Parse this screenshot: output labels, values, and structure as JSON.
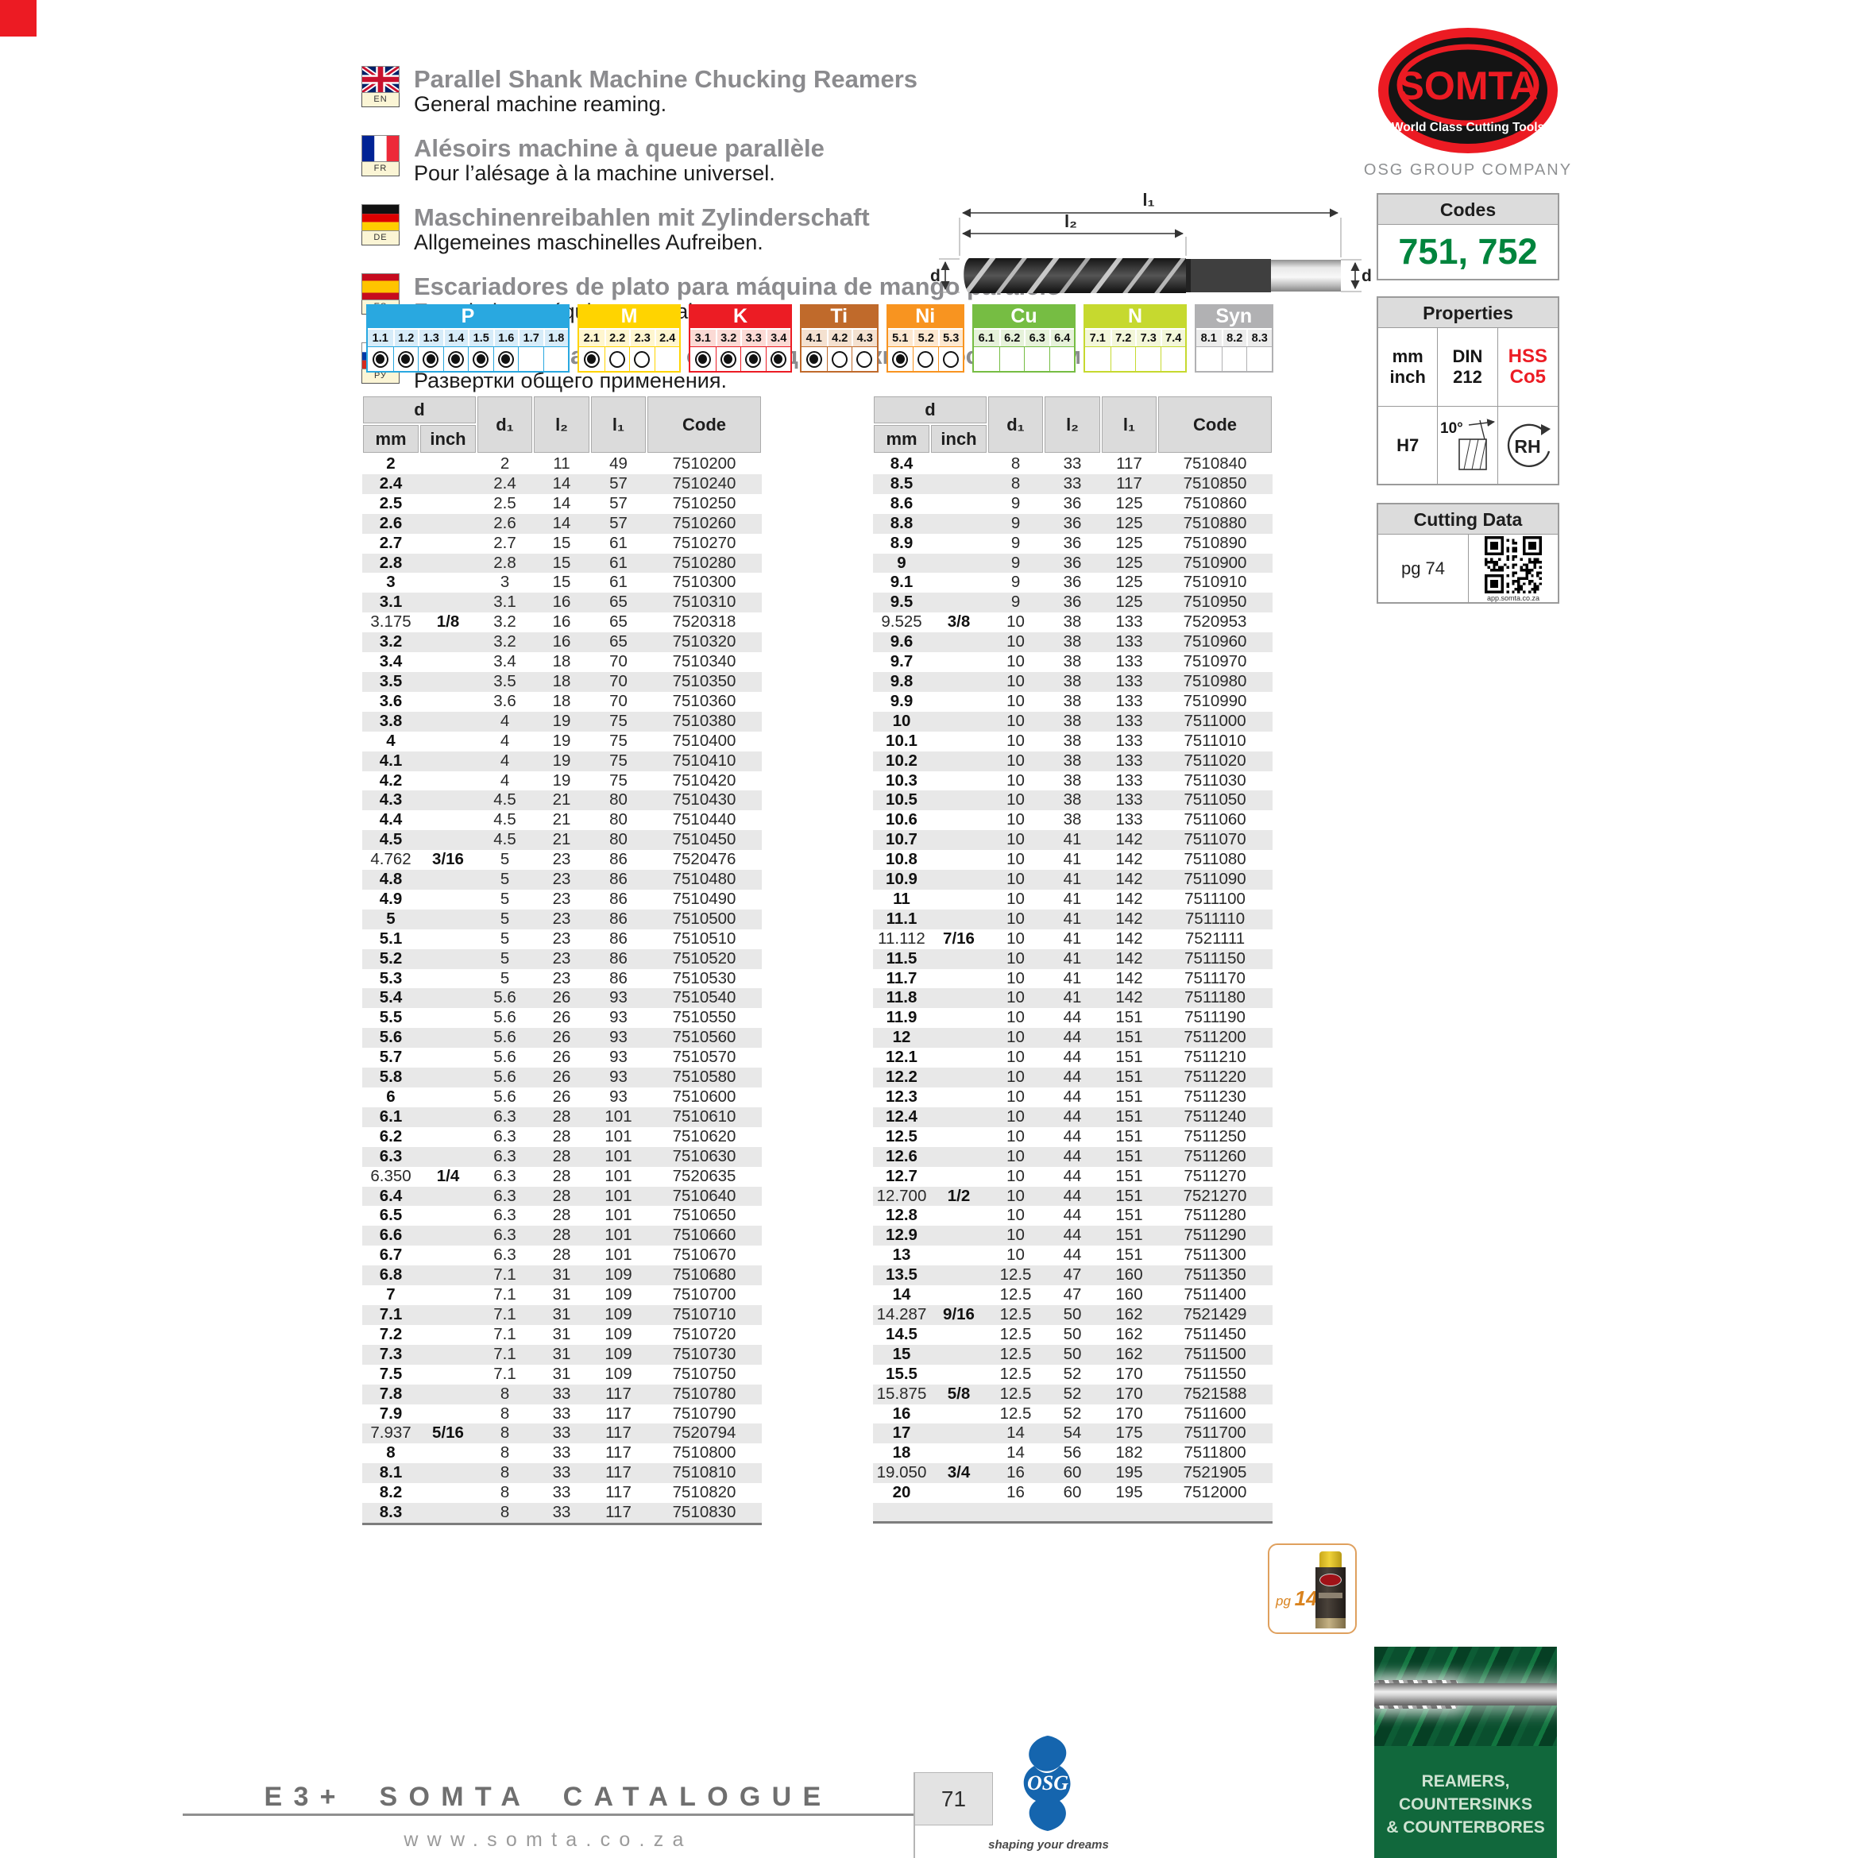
{
  "languages": [
    {
      "code": "EN",
      "flag": "uk",
      "title": "Parallel Shank Machine Chucking Reamers",
      "subtitle": "General machine reaming."
    },
    {
      "code": "FR",
      "flag": "fr",
      "title": "Alésoirs machine à queue parallèle",
      "subtitle": "Pour l’alésage à la machine universel."
    },
    {
      "code": "DE",
      "flag": "de",
      "title": "Maschinenreibahlen mit Zylinderschaft",
      "subtitle": "Allgemeines maschinelles Aufreiben."
    },
    {
      "code": "ES",
      "flag": "es",
      "title": "Escariadores de plato para máquina de mango paralelo",
      "subtitle": "Escariado a máquina general."
    },
    {
      "code": "РУ",
      "flag": "ru",
      "title": "Машинные развертки с цилиндрическим хвостовиком",
      "subtitle": "Развертки общего применения."
    }
  ],
  "logo": {
    "brand": "SOMTA",
    "tagline": "World Class Cutting Tools",
    "company": "OSG GROUP COMPANY"
  },
  "codes": {
    "title": "Codes",
    "value": "751, 752",
    "value_color": "#00843d"
  },
  "properties": {
    "title": "Properties",
    "units_line1": "mm",
    "units_line2": "inch",
    "din_line1": "DIN",
    "din_line2": "212",
    "hss_line1": "HSS",
    "hss_line2": "Co5",
    "hss_color": "#ec1c24",
    "tolerance": "H7",
    "rake_angle": "10°",
    "rotation": "RH"
  },
  "cutting_data": {
    "title": "Cutting Data",
    "page_ref": "pg 74",
    "qr_caption": "app.somta.co.za"
  },
  "drawing": {
    "label_l1": "l₁",
    "label_l2": "l₂",
    "label_d": "d",
    "label_d1": "d₁"
  },
  "material_chart": {
    "groups": [
      {
        "label": "P",
        "color": "#29a8e0",
        "light": "#d7ecf9",
        "cols": [
          {
            "n": "1.1",
            "state": "filled"
          },
          {
            "n": "1.2",
            "state": "filled"
          },
          {
            "n": "1.3",
            "state": "filled"
          },
          {
            "n": "1.4",
            "state": "filled"
          },
          {
            "n": "1.5",
            "state": "filled"
          },
          {
            "n": "1.6",
            "state": "filled"
          },
          {
            "n": "1.7",
            "state": "none"
          },
          {
            "n": "1.8",
            "state": "none"
          }
        ]
      },
      {
        "label": "M",
        "color": "#ffd400",
        "light": "#fff6cf",
        "cols": [
          {
            "n": "2.1",
            "state": "filled"
          },
          {
            "n": "2.2",
            "state": "empty"
          },
          {
            "n": "2.3",
            "state": "empty"
          },
          {
            "n": "2.4",
            "state": "none"
          }
        ]
      },
      {
        "label": "K",
        "color": "#ec1c24",
        "light": "#fbdad5",
        "cols": [
          {
            "n": "3.1",
            "state": "filled"
          },
          {
            "n": "3.2",
            "state": "filled"
          },
          {
            "n": "3.3",
            "state": "filled"
          },
          {
            "n": "3.4",
            "state": "filled"
          }
        ]
      },
      {
        "label": "Ti",
        "color": "#c06a2b",
        "light": "#f4e1d0",
        "cols": [
          {
            "n": "4.1",
            "state": "filled"
          },
          {
            "n": "4.2",
            "state": "empty"
          },
          {
            "n": "4.3",
            "state": "empty"
          }
        ]
      },
      {
        "label": "Ni",
        "color": "#f89420",
        "light": "#fde8d0",
        "cols": [
          {
            "n": "5.1",
            "state": "filled"
          },
          {
            "n": "5.2",
            "state": "empty"
          },
          {
            "n": "5.3",
            "state": "empty"
          }
        ]
      },
      {
        "label": "Cu",
        "color": "#76bd43",
        "light": "#e6f2da",
        "cols": [
          {
            "n": "6.1",
            "state": "none"
          },
          {
            "n": "6.2",
            "state": "none"
          },
          {
            "n": "6.3",
            "state": "none"
          },
          {
            "n": "6.4",
            "state": "none"
          }
        ]
      },
      {
        "label": "N",
        "color": "#c6d92f",
        "light": "#f3f7d9",
        "cols": [
          {
            "n": "7.1",
            "state": "none"
          },
          {
            "n": "7.2",
            "state": "none"
          },
          {
            "n": "7.3",
            "state": "none"
          },
          {
            "n": "7.4",
            "state": "none"
          }
        ]
      },
      {
        "label": "Syn",
        "color": "#b1b1b3",
        "light": "#ececec",
        "cols": [
          {
            "n": "8.1",
            "state": "none"
          },
          {
            "n": "8.2",
            "state": "none"
          },
          {
            "n": "8.3",
            "state": "none"
          }
        ]
      }
    ]
  },
  "tables": {
    "headers": {
      "d": "d",
      "mm": "mm",
      "inch": "inch",
      "d1": "d₁",
      "l2": "l₂",
      "l1": "l₁",
      "code": "Code"
    },
    "left_rows": [
      [
        "2",
        "",
        "2",
        "11",
        "49",
        "7510200"
      ],
      [
        "2.4",
        "",
        "2.4",
        "14",
        "57",
        "7510240"
      ],
      [
        "2.5",
        "",
        "2.5",
        "14",
        "57",
        "7510250"
      ],
      [
        "2.6",
        "",
        "2.6",
        "14",
        "57",
        "7510260"
      ],
      [
        "2.7",
        "",
        "2.7",
        "15",
        "61",
        "7510270"
      ],
      [
        "2.8",
        "",
        "2.8",
        "15",
        "61",
        "7510280"
      ],
      [
        "3",
        "",
        "3",
        "15",
        "61",
        "7510300"
      ],
      [
        "3.1",
        "",
        "3.1",
        "16",
        "65",
        "7510310"
      ],
      [
        "3.175",
        "1/8",
        "3.2",
        "16",
        "65",
        "7520318"
      ],
      [
        "3.2",
        "",
        "3.2",
        "16",
        "65",
        "7510320"
      ],
      [
        "3.4",
        "",
        "3.4",
        "18",
        "70",
        "7510340"
      ],
      [
        "3.5",
        "",
        "3.5",
        "18",
        "70",
        "7510350"
      ],
      [
        "3.6",
        "",
        "3.6",
        "18",
        "70",
        "7510360"
      ],
      [
        "3.8",
        "",
        "4",
        "19",
        "75",
        "7510380"
      ],
      [
        "4",
        "",
        "4",
        "19",
        "75",
        "7510400"
      ],
      [
        "4.1",
        "",
        "4",
        "19",
        "75",
        "7510410"
      ],
      [
        "4.2",
        "",
        "4",
        "19",
        "75",
        "7510420"
      ],
      [
        "4.3",
        "",
        "4.5",
        "21",
        "80",
        "7510430"
      ],
      [
        "4.4",
        "",
        "4.5",
        "21",
        "80",
        "7510440"
      ],
      [
        "4.5",
        "",
        "4.5",
        "21",
        "80",
        "7510450"
      ],
      [
        "4.762",
        "3/16",
        "5",
        "23",
        "86",
        "7520476"
      ],
      [
        "4.8",
        "",
        "5",
        "23",
        "86",
        "7510480"
      ],
      [
        "4.9",
        "",
        "5",
        "23",
        "86",
        "7510490"
      ],
      [
        "5",
        "",
        "5",
        "23",
        "86",
        "7510500"
      ],
      [
        "5.1",
        "",
        "5",
        "23",
        "86",
        "7510510"
      ],
      [
        "5.2",
        "",
        "5",
        "23",
        "86",
        "7510520"
      ],
      [
        "5.3",
        "",
        "5",
        "23",
        "86",
        "7510530"
      ],
      [
        "5.4",
        "",
        "5.6",
        "26",
        "93",
        "7510540"
      ],
      [
        "5.5",
        "",
        "5.6",
        "26",
        "93",
        "7510550"
      ],
      [
        "5.6",
        "",
        "5.6",
        "26",
        "93",
        "7510560"
      ],
      [
        "5.7",
        "",
        "5.6",
        "26",
        "93",
        "7510570"
      ],
      [
        "5.8",
        "",
        "5.6",
        "26",
        "93",
        "7510580"
      ],
      [
        "6",
        "",
        "5.6",
        "26",
        "93",
        "7510600"
      ],
      [
        "6.1",
        "",
        "6.3",
        "28",
        "101",
        "7510610"
      ],
      [
        "6.2",
        "",
        "6.3",
        "28",
        "101",
        "7510620"
      ],
      [
        "6.3",
        "",
        "6.3",
        "28",
        "101",
        "7510630"
      ],
      [
        "6.350",
        "1/4",
        "6.3",
        "28",
        "101",
        "7520635"
      ],
      [
        "6.4",
        "",
        "6.3",
        "28",
        "101",
        "7510640"
      ],
      [
        "6.5",
        "",
        "6.3",
        "28",
        "101",
        "7510650"
      ],
      [
        "6.6",
        "",
        "6.3",
        "28",
        "101",
        "7510660"
      ],
      [
        "6.7",
        "",
        "6.3",
        "28",
        "101",
        "7510670"
      ],
      [
        "6.8",
        "",
        "7.1",
        "31",
        "109",
        "7510680"
      ],
      [
        "7",
        "",
        "7.1",
        "31",
        "109",
        "7510700"
      ],
      [
        "7.1",
        "",
        "7.1",
        "31",
        "109",
        "7510710"
      ],
      [
        "7.2",
        "",
        "7.1",
        "31",
        "109",
        "7510720"
      ],
      [
        "7.3",
        "",
        "7.1",
        "31",
        "109",
        "7510730"
      ],
      [
        "7.5",
        "",
        "7.1",
        "31",
        "109",
        "7510750"
      ],
      [
        "7.8",
        "",
        "8",
        "33",
        "117",
        "7510780"
      ],
      [
        "7.9",
        "",
        "8",
        "33",
        "117",
        "7510790"
      ],
      [
        "7.937",
        "5/16",
        "8",
        "33",
        "117",
        "7520794"
      ],
      [
        "8",
        "",
        "8",
        "33",
        "117",
        "7510800"
      ],
      [
        "8.1",
        "",
        "8",
        "33",
        "117",
        "7510810"
      ],
      [
        "8.2",
        "",
        "8",
        "33",
        "117",
        "7510820"
      ],
      [
        "8.3",
        "",
        "8",
        "33",
        "117",
        "7510830"
      ]
    ],
    "right_rows": [
      [
        "8.4",
        "",
        "8",
        "33",
        "117",
        "7510840"
      ],
      [
        "8.5",
        "",
        "8",
        "33",
        "117",
        "7510850"
      ],
      [
        "8.6",
        "",
        "9",
        "36",
        "125",
        "7510860"
      ],
      [
        "8.8",
        "",
        "9",
        "36",
        "125",
        "7510880"
      ],
      [
        "8.9",
        "",
        "9",
        "36",
        "125",
        "7510890"
      ],
      [
        "9",
        "",
        "9",
        "36",
        "125",
        "7510900"
      ],
      [
        "9.1",
        "",
        "9",
        "36",
        "125",
        "7510910"
      ],
      [
        "9.5",
        "",
        "9",
        "36",
        "125",
        "7510950"
      ],
      [
        "9.525",
        "3/8",
        "10",
        "38",
        "133",
        "7520953"
      ],
      [
        "9.6",
        "",
        "10",
        "38",
        "133",
        "7510960"
      ],
      [
        "9.7",
        "",
        "10",
        "38",
        "133",
        "7510970"
      ],
      [
        "9.8",
        "",
        "10",
        "38",
        "133",
        "7510980"
      ],
      [
        "9.9",
        "",
        "10",
        "38",
        "133",
        "7510990"
      ],
      [
        "10",
        "",
        "10",
        "38",
        "133",
        "7511000"
      ],
      [
        "10.1",
        "",
        "10",
        "38",
        "133",
        "7511010"
      ],
      [
        "10.2",
        "",
        "10",
        "38",
        "133",
        "7511020"
      ],
      [
        "10.3",
        "",
        "10",
        "38",
        "133",
        "7511030"
      ],
      [
        "10.5",
        "",
        "10",
        "38",
        "133",
        "7511050"
      ],
      [
        "10.6",
        "",
        "10",
        "38",
        "133",
        "7511060"
      ],
      [
        "10.7",
        "",
        "10",
        "41",
        "142",
        "7511070"
      ],
      [
        "10.8",
        "",
        "10",
        "41",
        "142",
        "7511080"
      ],
      [
        "10.9",
        "",
        "10",
        "41",
        "142",
        "7511090"
      ],
      [
        "11",
        "",
        "10",
        "41",
        "142",
        "7511100"
      ],
      [
        "11.1",
        "",
        "10",
        "41",
        "142",
        "7511110"
      ],
      [
        "11.112",
        "7/16",
        "10",
        "41",
        "142",
        "7521111"
      ],
      [
        "11.5",
        "",
        "10",
        "41",
        "142",
        "7511150"
      ],
      [
        "11.7",
        "",
        "10",
        "41",
        "142",
        "7511170"
      ],
      [
        "11.8",
        "",
        "10",
        "41",
        "142",
        "7511180"
      ],
      [
        "11.9",
        "",
        "10",
        "44",
        "151",
        "7511190"
      ],
      [
        "12",
        "",
        "10",
        "44",
        "151",
        "7511200"
      ],
      [
        "12.1",
        "",
        "10",
        "44",
        "151",
        "7511210"
      ],
      [
        "12.2",
        "",
        "10",
        "44",
        "151",
        "7511220"
      ],
      [
        "12.3",
        "",
        "10",
        "44",
        "151",
        "7511230"
      ],
      [
        "12.4",
        "",
        "10",
        "44",
        "151",
        "7511240"
      ],
      [
        "12.5",
        "",
        "10",
        "44",
        "151",
        "7511250"
      ],
      [
        "12.6",
        "",
        "10",
        "44",
        "151",
        "7511260"
      ],
      [
        "12.7",
        "",
        "10",
        "44",
        "151",
        "7511270"
      ],
      [
        "12.700",
        "1/2",
        "10",
        "44",
        "151",
        "7521270"
      ],
      [
        "12.8",
        "",
        "10",
        "44",
        "151",
        "7511280"
      ],
      [
        "12.9",
        "",
        "10",
        "44",
        "151",
        "7511290"
      ],
      [
        "13",
        "",
        "10",
        "44",
        "151",
        "7511300"
      ],
      [
        "13.5",
        "",
        "12.5",
        "47",
        "160",
        "7511350"
      ],
      [
        "14",
        "",
        "12.5",
        "47",
        "160",
        "7511400"
      ],
      [
        "14.287",
        "9/16",
        "12.5",
        "50",
        "162",
        "7521429"
      ],
      [
        "14.5",
        "",
        "12.5",
        "50",
        "162",
        "7511450"
      ],
      [
        "15",
        "",
        "12.5",
        "50",
        "162",
        "7511500"
      ],
      [
        "15.5",
        "",
        "12.5",
        "52",
        "170",
        "7511550"
      ],
      [
        "15.875",
        "5/8",
        "12.5",
        "52",
        "170",
        "7521588"
      ],
      [
        "16",
        "",
        "12.5",
        "52",
        "170",
        "7511600"
      ],
      [
        "17",
        "",
        "14",
        "54",
        "175",
        "7511700"
      ],
      [
        "18",
        "",
        "14",
        "56",
        "182",
        "7511800"
      ],
      [
        "19.050",
        "3/4",
        "16",
        "60",
        "195",
        "7521905"
      ],
      [
        "20",
        "",
        "16",
        "60",
        "195",
        "7512000"
      ],
      [
        "",
        "",
        "",
        "",
        "",
        ""
      ]
    ]
  },
  "page_ref_box": {
    "prefix": "pg",
    "number": "147"
  },
  "banner": {
    "lines": [
      "REAMERS,",
      "COUNTERSINKS",
      "& COUNTERBORES"
    ]
  },
  "footer": {
    "catalogue": "E3+ SOMTA CATALOGUE",
    "url": "www.somta.co.za",
    "page_number": "71",
    "osg_tagline": "shaping your dreams"
  }
}
